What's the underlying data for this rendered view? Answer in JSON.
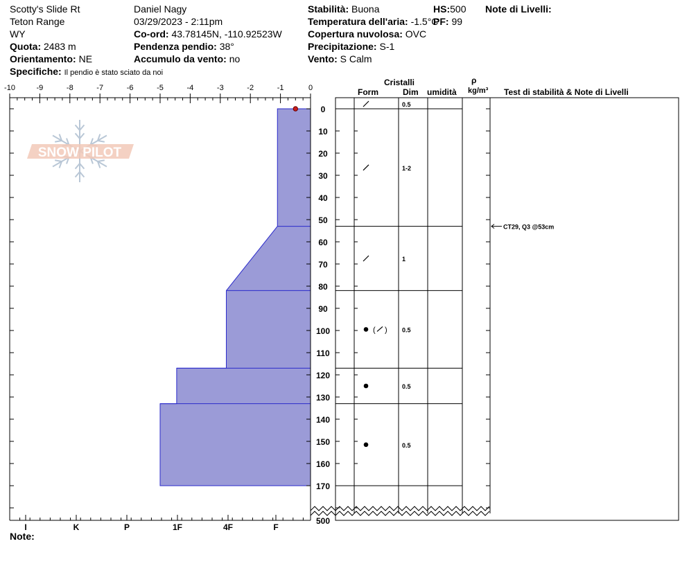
{
  "header": {
    "location": "Scotty's Slide Rt",
    "range": "Teton Range",
    "state": "WY",
    "elevation_label": "Quota:",
    "elevation_value": "2483 m",
    "aspect_label": "Orientamento:",
    "aspect_value": "NE",
    "specifics_label": "Specifiche:",
    "specifics_value": "Il pendio è stato sciato da noi",
    "observer": "Daniel Nagy",
    "datetime": "03/29/2023 - 2:11pm",
    "coord_label": "Co-ord:",
    "coord_value": "43.78145N, -110.92523W",
    "slope_label": "Pendenza pendio:",
    "slope_value": "38°",
    "wind_loading_label": "Accumulo da vento:",
    "wind_loading_value": "no",
    "stability_label": "Stabilità:",
    "stability_value": "Buona",
    "air_temp_label": "Temperatura dell'aria:",
    "air_temp_value": "-1.5°C",
    "cloud_label": "Copertura nuvolosa:",
    "cloud_value": "OVC",
    "precip_label": "Precipitazione:",
    "precip_value": "S-1",
    "wind_label": "Vento:",
    "wind_value": "S Calm",
    "hs_label": "HS:",
    "hs_value": "500",
    "pf_label": "PF:",
    "pf_value": "99",
    "layer_notes_label": "Note di Livelli:",
    "notes_label": "Note:"
  },
  "columns": {
    "crystals": "Cristalli",
    "form": "Form",
    "dim": "Dim",
    "humidity": "umidità",
    "rho": "ρ",
    "density_unit": "kg/m³",
    "tests": "Test di stabilità & Note di Livelli"
  },
  "logo_text": "SNOW PILOT",
  "chart_data": {
    "type": "area",
    "title": "",
    "xlabel": "",
    "ylabel": "",
    "temperature_axis": {
      "ticks": [
        -10,
        -9,
        -8,
        -7,
        -6,
        -5,
        -4,
        -3,
        -2,
        -1,
        0
      ],
      "range": [
        -10,
        0
      ]
    },
    "hardness_axis": {
      "labels": [
        "I",
        "K",
        "P",
        "1F",
        "4F",
        "F"
      ]
    },
    "depth_axis": {
      "ticks": [
        0,
        10,
        20,
        30,
        40,
        50,
        60,
        70,
        80,
        90,
        100,
        110,
        120,
        130,
        140,
        150,
        160,
        170
      ],
      "bottom_label": "500",
      "range": [
        0,
        180
      ]
    },
    "temperature_points": [
      {
        "depth": 0,
        "temp": -0.5
      }
    ],
    "hardness_profile": [
      {
        "depth": 0,
        "x": -1.1
      },
      {
        "depth": 53,
        "x": -1.1
      },
      {
        "depth": 82,
        "x": -2.8
      },
      {
        "depth": 117,
        "x": -2.8
      },
      {
        "depth": 117,
        "x": -4.45
      },
      {
        "depth": 133,
        "x": -4.45
      },
      {
        "depth": 133,
        "x": -5.0
      },
      {
        "depth": 170,
        "x": -5.0
      }
    ],
    "layer_boundaries": [
      0,
      53,
      82,
      117,
      133,
      170
    ],
    "layers": [
      {
        "top": 0,
        "bottom": 0,
        "form": "/",
        "dim": "0.5"
      },
      {
        "top": 0,
        "bottom": 53,
        "form": "/",
        "dim": "1-2"
      },
      {
        "top": 53,
        "bottom": 82,
        "form": "/",
        "dim": "1"
      },
      {
        "top": 82,
        "bottom": 117,
        "form": "●(/)",
        "dim": "0.5"
      },
      {
        "top": 117,
        "bottom": 133,
        "form": "●",
        "dim": "0.5"
      },
      {
        "top": 133,
        "bottom": 170,
        "form": "●",
        "dim": "0.5"
      }
    ],
    "stability_tests": [
      {
        "depth": 53,
        "text": "CT29, Q3 @53cm"
      }
    ],
    "grid": false,
    "legend": "none"
  }
}
